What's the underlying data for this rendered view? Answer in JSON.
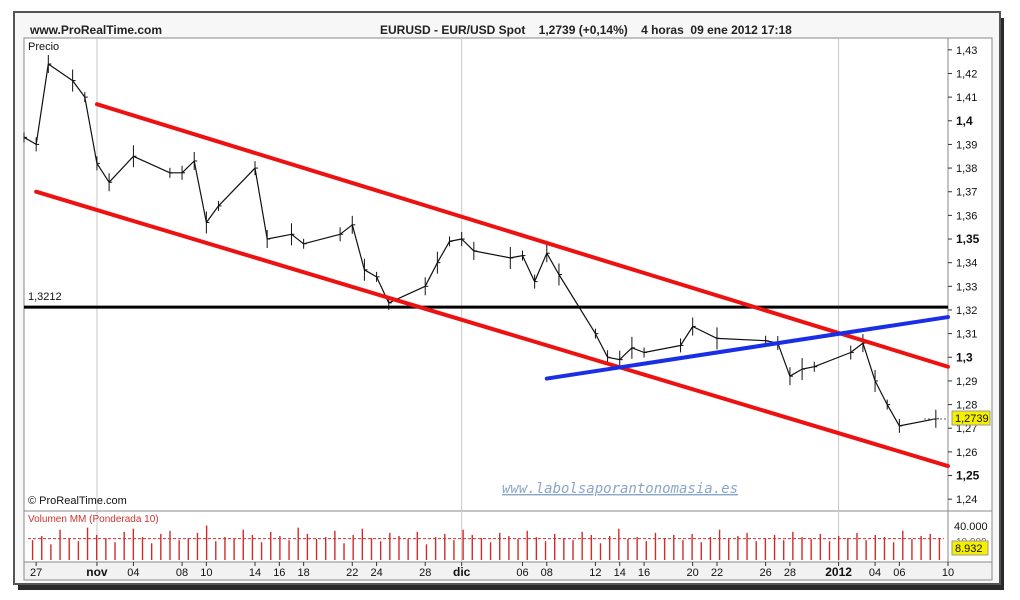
{
  "header": {
    "site": "www.ProRealTime.com",
    "instrument": "EURUSD - EUR/USD Spot    1,2739 (+0,14%)    4 horas  09 ene 2012 17:18"
  },
  "price_panel": {
    "label": "Precio",
    "watermark": "www.labolsaporantonomasia.es",
    "copyright": "© ProRealTime.com",
    "level_label": "1,3212",
    "current_price_tag": "1,2739"
  },
  "volume_panel": {
    "label": "Volumen MM (Ponderada 10)",
    "top_tick": "40.000",
    "hidden_tick": "10.000",
    "current_value_tag": "8.932"
  },
  "colors": {
    "channel": "#ee1111",
    "uptrend": "#1a2ee8",
    "support": "#000000",
    "candles": "#111111",
    "volume_bars": "#d42a2a",
    "volume_avg": "#cc3333",
    "price_tag_bg": "#f6f000",
    "grid": "#c8c8c8"
  },
  "chart_data": [
    {
      "type": "line",
      "title": "EURUSD - EUR/USD Spot",
      "ylabel": "Precio",
      "ylim": [
        1.235,
        1.435
      ],
      "grid": false,
      "y_ticks": [
        "1,43",
        "1,42",
        "1,41",
        "1,4",
        "1,39",
        "1,38",
        "1,37",
        "1,36",
        "1,35",
        "1,34",
        "1,33",
        "1,32",
        "1,31",
        "1,3",
        "1,29",
        "1,28",
        "1,27",
        "1,26",
        "1,25",
        "1,24"
      ],
      "y_tick_values": [
        1.43,
        1.42,
        1.41,
        1.4,
        1.39,
        1.38,
        1.37,
        1.36,
        1.35,
        1.34,
        1.33,
        1.32,
        1.31,
        1.3,
        1.29,
        1.28,
        1.27,
        1.26,
        1.25,
        1.24
      ],
      "bold_ticks": [
        "1,4",
        "1,35",
        "1,3",
        "1,25"
      ],
      "x_ticks": [
        "27",
        "nov",
        "04",
        "08",
        "10",
        "14",
        "16",
        "18",
        "22",
        "24",
        "28",
        "dic",
        "06",
        "08",
        "12",
        "14",
        "16",
        "20",
        "22",
        "26",
        "28",
        "2012",
        "04",
        "06",
        "10"
      ],
      "bold_x_ticks": [
        "nov",
        "dic",
        "2012"
      ],
      "month_gridlines": [
        "nov",
        "dic",
        "2012"
      ],
      "x_date_domain": [
        "2011-10-26",
        "2012-01-10"
      ],
      "x_tick_dates": [
        "2011-10-27",
        "2011-11-01",
        "2011-11-04",
        "2011-11-08",
        "2011-11-10",
        "2011-11-14",
        "2011-11-16",
        "2011-11-18",
        "2011-11-22",
        "2011-11-24",
        "2011-11-28",
        "2011-12-01",
        "2011-12-06",
        "2011-12-08",
        "2011-12-12",
        "2011-12-14",
        "2011-12-16",
        "2011-12-20",
        "2011-12-22",
        "2011-12-26",
        "2011-12-28",
        "2012-01-01",
        "2012-01-04",
        "2012-01-06",
        "2012-01-10"
      ],
      "series": [
        {
          "name": "",
          "x": [
            "2011-10-26",
            "2011-10-27",
            "2011-10-28",
            "2011-10-30",
            "2011-10-31",
            "2011-11-01",
            "2011-11-02",
            "2011-11-04",
            "2011-11-07",
            "2011-11-08",
            "2011-11-09",
            "2011-11-10",
            "2011-11-11",
            "2011-11-14",
            "2011-11-15",
            "2011-11-17",
            "2011-11-18",
            "2011-11-21",
            "2011-11-22",
            "2011-11-23",
            "2011-11-24",
            "2011-11-25",
            "2011-11-28",
            "2011-11-29",
            "2011-11-30",
            "2011-12-01",
            "2011-12-02",
            "2011-12-05",
            "2011-12-06",
            "2011-12-07",
            "2011-12-08",
            "2011-12-09",
            "2011-12-12",
            "2011-12-13",
            "2011-12-14",
            "2011-12-15",
            "2011-12-16",
            "2011-12-19",
            "2011-12-20",
            "2011-12-22",
            "2011-12-26",
            "2011-12-27",
            "2011-12-28",
            "2011-12-29",
            "2011-12-30",
            "2012-01-02",
            "2012-01-03",
            "2012-01-04",
            "2012-01-05",
            "2012-01-06",
            "2012-01-09"
          ],
          "y": [
            1.393,
            1.39,
            1.424,
            1.417,
            1.41,
            1.382,
            1.374,
            1.385,
            1.378,
            1.378,
            1.383,
            1.357,
            1.364,
            1.38,
            1.35,
            1.352,
            1.348,
            1.352,
            1.356,
            1.337,
            1.334,
            1.323,
            1.33,
            1.34,
            1.349,
            1.35,
            1.345,
            1.342,
            1.343,
            1.332,
            1.344,
            1.335,
            1.31,
            1.3,
            1.299,
            1.304,
            1.302,
            1.305,
            1.313,
            1.308,
            1.307,
            1.306,
            1.292,
            1.295,
            1.296,
            1.302,
            1.306,
            1.29,
            1.28,
            1.271,
            1.274
          ]
        }
      ],
      "channel_upper": {
        "from": [
          "2011-11-01",
          1.407
        ],
        "to": [
          "2012-01-10",
          1.296
        ]
      },
      "channel_lower": {
        "from": [
          "2011-10-27",
          1.37
        ],
        "to": [
          "2012-01-10",
          1.254
        ]
      },
      "uptrend_line": {
        "from": [
          "2011-12-08",
          1.291
        ],
        "to": [
          "2012-01-10",
          1.317
        ]
      },
      "support_level": 1.3212,
      "current_price": 1.2739
    },
    {
      "type": "bar",
      "title": "Volumen MM (Ponderada 10)",
      "y_ticks": [
        "40.000"
      ],
      "ylim": [
        0,
        45000
      ],
      "moving_average_level": 8932,
      "series": [
        {
          "name": "",
          "values": [
            19000,
            23000,
            15000,
            29000,
            20000,
            18000,
            31000,
            24000,
            21000,
            17000,
            27000,
            30000,
            22000,
            16000,
            25000,
            28000,
            19000,
            21000,
            26000,
            33000,
            18000,
            22000,
            20000,
            29000,
            24000,
            17000,
            27000,
            23000,
            19000,
            31000,
            25000,
            20000,
            22000,
            28000,
            16000,
            24000,
            30000,
            21000,
            18000,
            26000,
            23000,
            20000,
            27000,
            15000,
            22000,
            25000,
            19000,
            29000,
            24000,
            21000,
            17000,
            26000,
            23000,
            20000,
            28000,
            22000,
            18000,
            25000,
            21000,
            19000,
            27000,
            24000,
            16000,
            23000,
            30000,
            20000,
            22000,
            18000,
            26000,
            21000,
            24000,
            19000,
            25000,
            17000,
            22000,
            29000,
            20000,
            23000,
            26000,
            18000,
            21000,
            24000,
            19000,
            27000,
            22000,
            20000,
            25000,
            18000,
            23000,
            21000,
            26000,
            19000,
            24000,
            22000,
            17000,
            28000,
            20000,
            23000,
            25000,
            21000
          ]
        }
      ]
    }
  ]
}
